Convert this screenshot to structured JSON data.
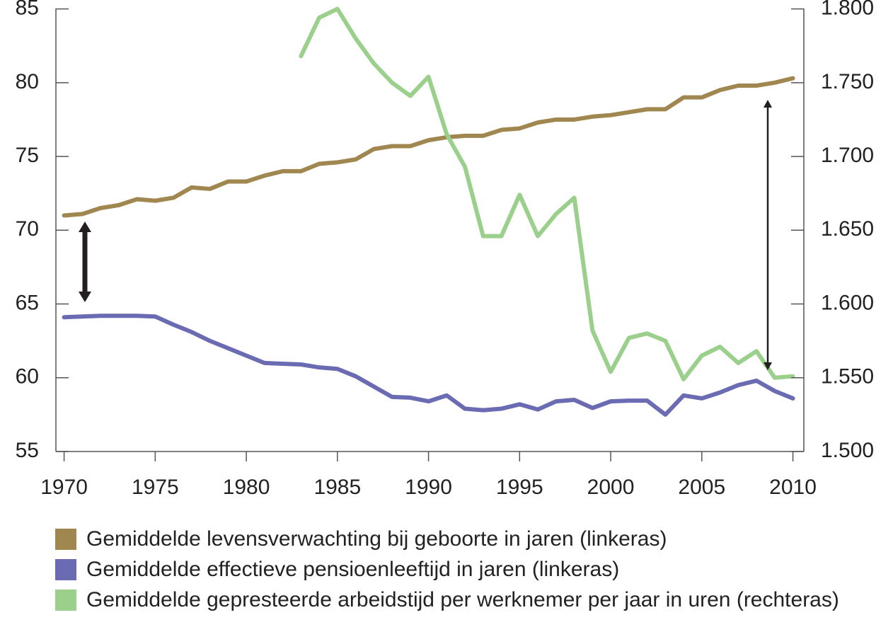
{
  "chart_data": {
    "type": "line",
    "x": [
      1970,
      1971,
      1972,
      1973,
      1974,
      1975,
      1976,
      1977,
      1978,
      1979,
      1980,
      1981,
      1982,
      1983,
      1984,
      1985,
      1986,
      1987,
      1988,
      1989,
      1990,
      1991,
      1992,
      1993,
      1994,
      1995,
      1996,
      1997,
      1998,
      1999,
      2000,
      2001,
      2002,
      2003,
      2004,
      2005,
      2006,
      2007,
      2008,
      2009,
      2010
    ],
    "series": [
      {
        "name": "Gemiddelde levensverwachting bij geboorte in jaren (linkeras)",
        "color": "#a0864f",
        "values": [
          71.0,
          71.1,
          71.5,
          71.7,
          72.1,
          72.0,
          72.2,
          72.9,
          72.8,
          73.3,
          73.3,
          73.7,
          74.0,
          74.0,
          74.5,
          74.6,
          74.8,
          75.5,
          75.7,
          75.7,
          76.1,
          76.3,
          76.4,
          76.4,
          76.8,
          76.9,
          77.3,
          77.5,
          77.5,
          77.7,
          77.8,
          78.0,
          78.2,
          78.2,
          79.0,
          79.0,
          79.5,
          79.8,
          79.8,
          80.0,
          80.3
        ]
      },
      {
        "name": "Gemiddelde effectieve pensioenleeftijd in jaren (linkeras)",
        "color": "#6b6bb3",
        "values": [
          64.1,
          64.15,
          64.2,
          64.2,
          64.2,
          64.15,
          63.6,
          63.1,
          62.5,
          62.0,
          61.5,
          61.0,
          60.95,
          60.9,
          60.7,
          60.6,
          60.1,
          59.4,
          58.7,
          58.65,
          58.4,
          58.8,
          57.9,
          57.8,
          57.9,
          58.2,
          57.85,
          58.4,
          58.5,
          57.95,
          58.4,
          58.45,
          58.45,
          57.5,
          58.8,
          58.6,
          59.0,
          59.5,
          59.8,
          59.1,
          58.6
        ]
      },
      {
        "name": "Gemiddelde gepresteerde arbeidstijd per werknemer per jaar in uren (rechteras)",
        "color": "#9bd08c",
        "axis": "y2",
        "values": [
          null,
          null,
          null,
          null,
          null,
          null,
          null,
          null,
          null,
          null,
          null,
          null,
          null,
          1768,
          1794,
          1800,
          1780,
          1763,
          1750,
          1741,
          1754,
          1715,
          1693,
          1646,
          1646,
          1674,
          1646,
          1661,
          1672,
          1582,
          1554,
          1577,
          1580,
          1575,
          1549,
          1565,
          1571,
          1560,
          1568,
          1550,
          1551
        ]
      }
    ],
    "xlim": [
      1969.55,
      2010.6
    ],
    "xticks": [
      1970,
      1975,
      1980,
      1985,
      1990,
      1995,
      2000,
      2005,
      2010
    ],
    "ylim": [
      55,
      85
    ],
    "yticks": [
      55,
      60,
      65,
      70,
      75,
      80,
      85
    ],
    "y2lim": [
      1500,
      1800
    ],
    "y2ticks": [
      {
        "value": 1500,
        "label": "1.500"
      },
      {
        "value": 1550,
        "label": "1.550"
      },
      {
        "value": 1600,
        "label": "1.600"
      },
      {
        "value": 1650,
        "label": "1.650"
      },
      {
        "value": 1700,
        "label": "1.700"
      },
      {
        "value": 1750,
        "label": "1.750"
      },
      {
        "value": 1800,
        "label": "1.800"
      }
    ]
  }
}
